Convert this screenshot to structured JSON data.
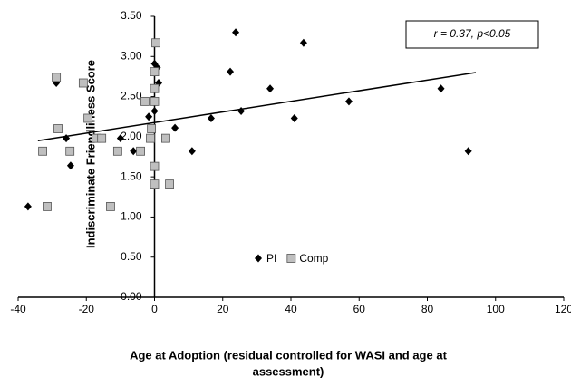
{
  "chart_data": {
    "type": "scatter",
    "ylabel": "Indiscriminate Friendliness Score",
    "xlabel": [
      "Age at Adoption (residual controlled for WASI and age at",
      "assessment)"
    ],
    "annotation": "r = 0.37, p<0.05",
    "xlim": [
      -40,
      120
    ],
    "xticks": [
      -40,
      -20,
      0,
      20,
      40,
      60,
      80,
      100,
      120
    ],
    "ylim": [
      0,
      3.5
    ],
    "yticks": [
      {
        "value": 0,
        "label": "0.00"
      },
      {
        "value": 0.5,
        "label": "0.50"
      },
      {
        "value": 1,
        "label": "1.00"
      },
      {
        "value": 1.5,
        "label": "1.50"
      },
      {
        "value": 2,
        "label": "2.00"
      },
      {
        "value": 2.5,
        "label": "2.50"
      },
      {
        "value": 3,
        "label": "3.00"
      },
      {
        "value": 3.5,
        "label": "3.50"
      }
    ],
    "legend": "bottom",
    "series": [
      {
        "name": "PI",
        "color": "#000000",
        "marker": "diamond",
        "x": [
          -37.1,
          -28.8,
          -25.9,
          -24.6,
          -10,
          -6.2,
          -1.7,
          0,
          0.8,
          1.2,
          0,
          6,
          11,
          16.6,
          22.2,
          23.8,
          25.4,
          33.9,
          41,
          43.7,
          57,
          84,
          92
        ],
        "values": [
          1.13,
          2.67,
          1.98,
          1.64,
          1.98,
          1.82,
          2.25,
          2.91,
          2.86,
          2.67,
          2.32,
          2.11,
          1.82,
          2.23,
          2.81,
          3.3,
          2.32,
          2.6,
          2.23,
          3.17,
          2.44,
          2.6,
          1.82
        ]
      },
      {
        "name": "Comp",
        "color": "#bfbfbf",
        "marker": "square",
        "x": [
          -32.8,
          -31.5,
          -28.8,
          -28.3,
          -24.8,
          -20.9,
          -19.5,
          -17.1,
          -15.5,
          -12.9,
          -10.8,
          -4.1,
          -2.8,
          -0.9,
          -1.2,
          0.4,
          0,
          0,
          0,
          0,
          0,
          3.3,
          4.4
        ],
        "values": [
          1.82,
          1.13,
          2.74,
          2.1,
          1.82,
          2.67,
          2.23,
          1.98,
          1.98,
          1.13,
          1.82,
          1.82,
          2.44,
          2.1,
          1.98,
          3.17,
          2.81,
          2.6,
          2.44,
          1.63,
          1.41,
          1.98,
          1.41
        ]
      }
    ],
    "trendline": {
      "x": [
        -34.2,
        94.2
      ],
      "values": [
        1.95,
        2.8
      ]
    }
  }
}
